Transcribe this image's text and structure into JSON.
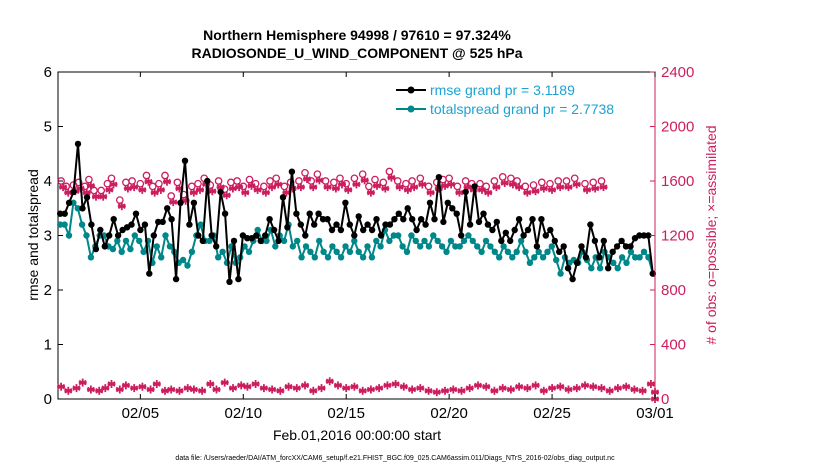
{
  "colors": {
    "rmse": "#000000",
    "spread": "#00878a",
    "obs": "#cc1e5e",
    "legend_rmse_text": "#1aa3d4",
    "legend_spread_text": "#1aa3d4",
    "axis": "#000000"
  },
  "chart_data": {
    "type": "line",
    "title_line1": "Northern Hemisphere 94998 / 97610 = 97.324%",
    "title_line2": "RADIOSONDE_U_WIND_COMPONENT @ 525 hPa",
    "xlabel": "Feb.01,2016 00:00:00 start",
    "ylabel_left": "rmse and totalspread",
    "ylabel_right": "# of obs: o=possible; ×=assimilated",
    "footer": "data file: /Users/raeder/DAI/ATM_forcXX/CAM6_setup/f.e21.FHIST_BGC.f09_025.CAM6assim.011/Diags_NTrS_2016-02/obs_diag_output.nc",
    "xlim": [
      0,
      29
    ],
    "ylim_left": [
      0,
      6
    ],
    "ylim_right": [
      0,
      2400
    ],
    "yticks_left": [
      0,
      1,
      2,
      3,
      4,
      5,
      6
    ],
    "yticks_right": [
      0,
      400,
      800,
      1200,
      1600,
      2000,
      2400
    ],
    "xticks": [
      {
        "value": 4,
        "label": "02/05"
      },
      {
        "value": 9,
        "label": "02/10"
      },
      {
        "value": 14,
        "label": "02/15"
      },
      {
        "value": 19,
        "label": "02/20"
      },
      {
        "value": 24,
        "label": "02/25"
      },
      {
        "value": 29,
        "label": "03/01"
      }
    ],
    "legend": [
      {
        "name": "rmse grand pr = 3.1189",
        "series": "rmse"
      },
      {
        "name": "totalspread grand pr = 2.7738",
        "series": "spread"
      }
    ],
    "series": [
      {
        "name": "rmse",
        "axis": "left",
        "values": [
          3.4,
          3.4,
          3.6,
          3.8,
          4.68,
          3.5,
          3.7,
          3.2,
          2.75,
          3.1,
          2.8,
          3.0,
          3.3,
          3.0,
          3.1,
          3.15,
          3.2,
          3.4,
          3.1,
          3.2,
          2.3,
          3.0,
          3.25,
          3.25,
          3.5,
          3.3,
          2.2,
          3.6,
          4.37,
          3.2,
          3.6,
          3.0,
          2.9,
          4.0,
          3.0,
          2.8,
          3.8,
          3.4,
          2.15,
          2.9,
          2.2,
          3.0,
          2.95,
          2.95,
          3.0,
          2.9,
          3.0,
          3.3,
          3.1,
          2.9,
          3.7,
          3.15,
          4.17,
          3.4,
          3.2,
          3.0,
          3.4,
          3.2,
          3.4,
          3.3,
          3.3,
          3.1,
          3.2,
          3.1,
          3.6,
          3.2,
          3.0,
          3.35,
          3.1,
          3.2,
          3.1,
          3.3,
          3.0,
          3.2,
          3.2,
          3.3,
          3.4,
          3.3,
          3.5,
          3.3,
          3.1,
          3.3,
          3.2,
          3.6,
          3.3,
          4.07,
          3.25,
          3.6,
          3.5,
          3.4,
          3.0,
          3.8,
          3.2,
          3.9,
          3.25,
          3.4,
          3.2,
          3.1,
          3.25,
          2.9,
          3.05,
          2.9,
          3.1,
          3.3,
          3.0,
          3.1,
          3.3,
          2.8,
          3.3,
          3.0,
          3.1,
          2.9,
          2.7,
          2.8,
          2.4,
          2.2,
          2.5,
          2.8,
          2.6,
          3.2,
          2.9,
          2.6,
          2.9,
          2.4,
          2.7,
          2.8,
          2.9,
          2.8,
          2.8,
          2.95,
          3.0,
          3.0,
          3.0,
          2.3
        ]
      },
      {
        "name": "totalspread",
        "axis": "left",
        "values": [
          3.2,
          3.2,
          3.0,
          3.6,
          3.5,
          3.2,
          3.0,
          2.6,
          2.8,
          3.0,
          3.0,
          2.8,
          2.75,
          2.9,
          2.7,
          2.9,
          2.75,
          3.0,
          2.9,
          2.7,
          2.9,
          2.5,
          2.8,
          2.6,
          3.0,
          2.8,
          2.7,
          2.5,
          2.55,
          2.45,
          2.7,
          3.0,
          3.2,
          2.9,
          2.9,
          3.0,
          2.6,
          2.7,
          2.5,
          2.8,
          2.5,
          2.6,
          2.8,
          2.7,
          2.9,
          3.1,
          2.9,
          2.9,
          3.1,
          2.8,
          3.0,
          2.9,
          3.2,
          2.8,
          2.9,
          2.6,
          2.8,
          2.7,
          2.6,
          2.9,
          2.7,
          2.6,
          2.8,
          2.7,
          2.6,
          2.8,
          2.7,
          2.9,
          2.7,
          2.6,
          2.8,
          2.6,
          2.9,
          2.8,
          3.1,
          2.9,
          3.0,
          3.0,
          2.8,
          2.7,
          3.0,
          2.9,
          2.8,
          2.9,
          2.8,
          3.0,
          2.9,
          2.8,
          2.7,
          2.9,
          2.8,
          2.8,
          2.9,
          3.0,
          2.9,
          2.8,
          2.7,
          2.9,
          2.8,
          2.7,
          2.6,
          2.8,
          2.7,
          2.6,
          2.7,
          2.9,
          2.7,
          2.5,
          2.6,
          2.7,
          2.6,
          2.7,
          2.8,
          2.55,
          2.3,
          2.6,
          2.5,
          2.55,
          2.5,
          2.7,
          2.55,
          2.4,
          2.6,
          2.4,
          2.7,
          2.6,
          2.5,
          2.4,
          2.6,
          2.5,
          2.7,
          2.6,
          2.6,
          2.7,
          2.6,
          2.3
        ]
      },
      {
        "name": "obs possible",
        "axis": "right",
        "values": [
          1600,
          1560,
          1570,
          1590,
          1560,
          1610,
          1530,
          1530,
          1580,
          1620,
          1460,
          1590,
          1600,
          1580,
          1640,
          1560,
          1580,
          1640,
          1490,
          1590,
          1500,
          1560,
          1580,
          1620,
          1570,
          1600,
          1540,
          1590,
          1600,
          1560,
          1610,
          1580,
          1560,
          1600,
          1620,
          1560,
          1590,
          1600,
          1660,
          1600,
          1650,
          1600,
          1590,
          1620,
          1580,
          1620,
          1650,
          1560,
          1610,
          1590,
          1670,
          1600,
          1580,
          1600,
          1620,
          1560,
          1590,
          1610,
          1620,
          1560,
          1600,
          1580,
          1580,
          1560,
          1600,
          1630,
          1620,
          1600,
          1560,
          1570,
          1590,
          1580,
          1600,
          1600,
          1620,
          1580,
          1590,
          1600
        ],
        "x": [
          0.15,
          0.4,
          0.75,
          1.0,
          1.3,
          1.5,
          1.75,
          2.1,
          2.4,
          2.6,
          3.0,
          3.3,
          3.6,
          4.0,
          4.3,
          4.6,
          4.9,
          5.2,
          5.5,
          5.8,
          6.1,
          6.5,
          6.8,
          7.1,
          7.4,
          7.8,
          8.1,
          8.4,
          8.7,
          9.0,
          9.3,
          9.6,
          10.0,
          10.3,
          10.6,
          11.0,
          11.3,
          11.7,
          12.0,
          12.3,
          12.6,
          13.0,
          13.4,
          13.7,
          14.0,
          14.4,
          14.8,
          15.1,
          15.4,
          15.8,
          16.1,
          16.5,
          16.9,
          17.2,
          17.6,
          18.0,
          18.4,
          18.7,
          19.0,
          19.4,
          19.8,
          20.1,
          20.5,
          20.8,
          21.2,
          21.6,
          22.0,
          22.3,
          22.7,
          23.1,
          23.5,
          23.9,
          24.3,
          24.7,
          25.1,
          25.6,
          26.0,
          26.4
        ]
      },
      {
        "name": "obs assimilated",
        "axis": "right",
        "values": [
          90,
          60,
          80,
          120,
          70,
          60,
          80,
          110,
          70,
          100,
          80,
          90,
          70,
          110,
          60,
          70,
          60,
          80,
          70,
          60,
          110,
          70,
          120,
          80,
          100,
          90,
          110,
          80,
          70,
          60,
          90,
          80,
          100,
          60,
          80,
          130,
          100,
          80,
          90,
          60,
          70,
          80,
          100,
          110,
          90,
          70,
          80,
          60,
          50,
          60,
          70,
          60,
          80,
          100,
          90,
          60,
          80,
          70,
          90,
          80,
          100,
          60,
          80,
          90,
          70,
          80,
          100,
          90,
          80,
          60,
          80,
          90,
          70,
          60,
          110,
          0,
          50
        ],
        "x": [
          0.15,
          0.5,
          0.9,
          1.2,
          1.6,
          2.0,
          2.3,
          2.6,
          3.0,
          3.3,
          3.7,
          4.1,
          4.5,
          4.8,
          5.2,
          5.5,
          5.9,
          6.3,
          6.6,
          7.0,
          7.4,
          7.7,
          8.1,
          8.5,
          8.9,
          9.2,
          9.6,
          10.0,
          10.4,
          10.8,
          11.2,
          11.6,
          12.0,
          12.4,
          12.8,
          13.2,
          13.6,
          14.0,
          14.4,
          14.8,
          15.2,
          15.6,
          16.0,
          16.4,
          16.8,
          17.2,
          17.6,
          18.0,
          18.4,
          18.8,
          19.2,
          19.6,
          20.0,
          20.4,
          20.8,
          21.2,
          21.6,
          22.0,
          22.4,
          22.8,
          23.2,
          23.6,
          24.0,
          24.4,
          24.8,
          25.2,
          25.6,
          26.0,
          26.4,
          26.8,
          27.2,
          27.6,
          28.0,
          28.4,
          28.8,
          29.0,
          29.0
        ]
      }
    ]
  }
}
